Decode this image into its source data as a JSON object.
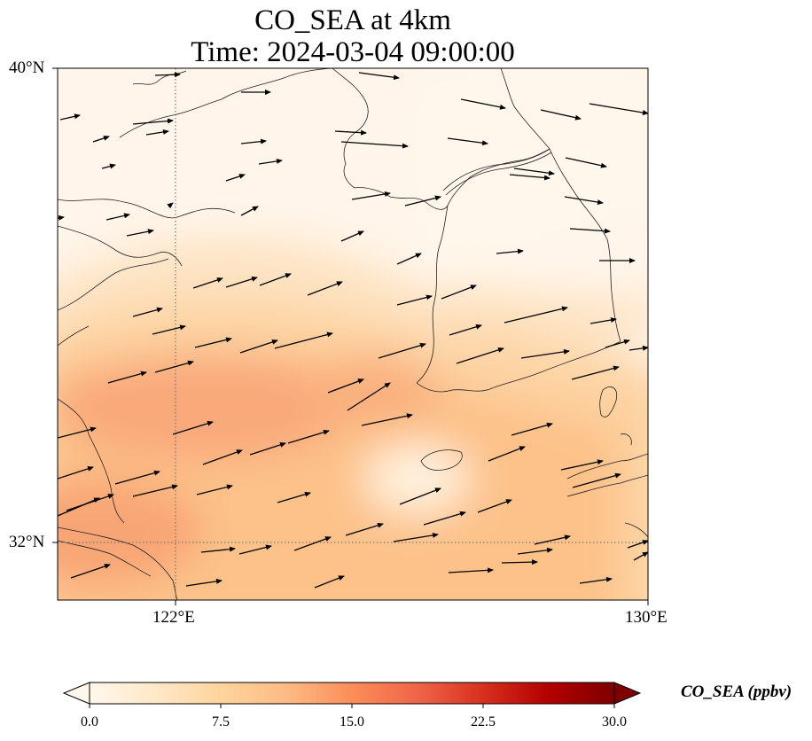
{
  "title": {
    "line1": "CO_SEA at 4km",
    "line2": "Time: 2024-03-04 09:00:00"
  },
  "map": {
    "lat_range": [
      30.8,
      40.0
    ],
    "lon_range": [
      120.0,
      130.0
    ],
    "lat_ticks": [
      {
        "value": 40,
        "label": "40°N"
      },
      {
        "value": 32,
        "label": "32°N"
      }
    ],
    "lon_ticks": [
      {
        "value": 122,
        "label": "122°E"
      },
      {
        "value": 130,
        "label": "130°E"
      }
    ],
    "gridlines": "dotted",
    "field_colormap": "OrRd",
    "wind_vectors": "black arrows, mostly pointing east to east-northeast"
  },
  "colorbar": {
    "label": "CO_SEA (ppbv)",
    "min": 0.0,
    "max": 30.0,
    "extend": "both",
    "ticks": [
      "0.0",
      "7.5",
      "15.0",
      "22.5",
      "30.0"
    ],
    "colors": [
      "#fff7ec",
      "#fee8c8",
      "#fdd49e",
      "#fdbb84",
      "#fc8d59",
      "#ef6548",
      "#d7301f",
      "#b30000",
      "#7f0000"
    ]
  }
}
